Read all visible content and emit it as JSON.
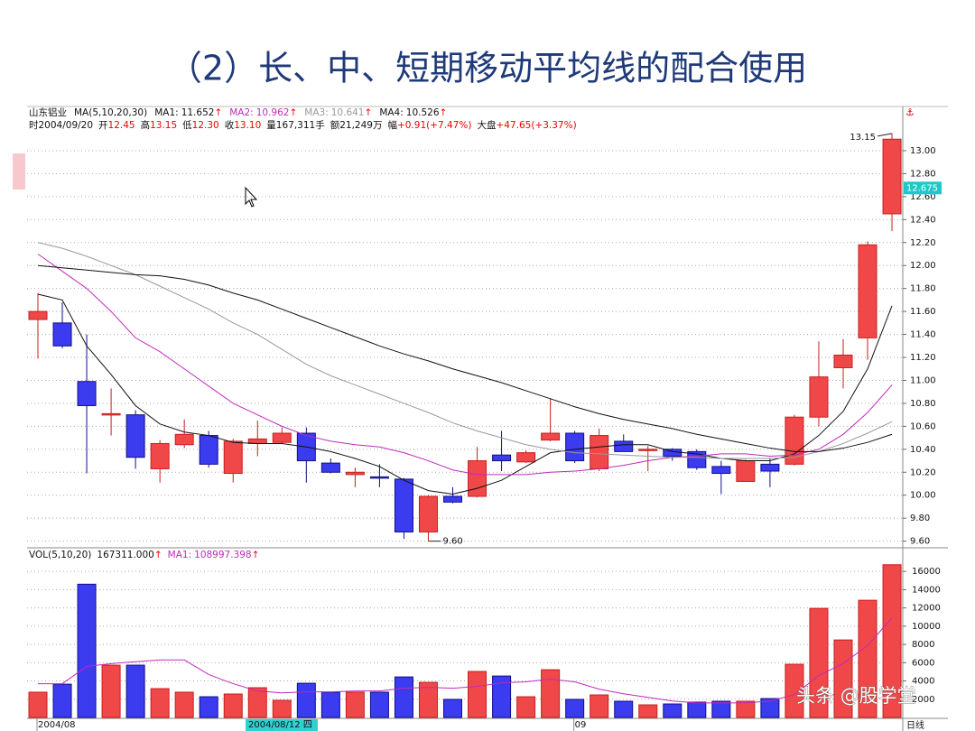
{
  "header": {
    "title": "（2）长、中、短期移动平均线的配合使用",
    "watermark": "头条 @股学堂"
  },
  "chart_data": [
    {
      "type": "candlestick",
      "stock_name": "山东铝业",
      "ma_label": "MA(5,10,20,30)",
      "up_arrow": "↑",
      "info": [
        {
          "label": "时2004/09/20"
        },
        {
          "label": "开",
          "value": "12.45"
        },
        {
          "label": "高",
          "value": "13.15"
        },
        {
          "label": "低",
          "value": "12.30"
        },
        {
          "label": "收",
          "value": "13.10"
        },
        {
          "label": "量167,311手"
        },
        {
          "label": "额21,249万"
        },
        {
          "label": "幅",
          "value": "+0.91(+7.47%)"
        },
        {
          "label": "大盘",
          "value": "+47.65(+3.37%)"
        }
      ],
      "categories": [
        "2004/08",
        null,
        null,
        null,
        null,
        null,
        null,
        null,
        null,
        null,
        null,
        null,
        null,
        null,
        null,
        null,
        null,
        null,
        null,
        null,
        null,
        null,
        "09",
        null,
        null,
        null,
        null,
        null,
        null,
        null,
        null,
        null,
        null,
        null,
        null,
        null
      ],
      "cursor_label": "2004/08/12 四",
      "period_label": "日线",
      "open": [
        11.53,
        11.5,
        10.99,
        10.7,
        10.7,
        10.23,
        10.44,
        10.52,
        10.19,
        10.45,
        10.46,
        10.54,
        10.28,
        10.18,
        10.16,
        10.14,
        9.68,
        9.99,
        9.99,
        10.35,
        10.29,
        10.48,
        10.54,
        10.23,
        10.47,
        10.39,
        10.4,
        10.38,
        10.25,
        10.12,
        10.27,
        10.27,
        10.68,
        11.11,
        11.37,
        12.45
      ],
      "high": [
        11.76,
        11.68,
        11.4,
        10.93,
        10.74,
        10.48,
        10.66,
        10.56,
        10.49,
        10.65,
        10.59,
        10.59,
        10.32,
        10.24,
        10.27,
        10.15,
        10.0,
        10.07,
        10.42,
        10.56,
        10.39,
        10.84,
        10.56,
        10.58,
        10.53,
        10.43,
        10.41,
        10.4,
        10.3,
        10.31,
        10.32,
        10.7,
        11.34,
        11.36,
        12.21,
        13.15
      ],
      "low": [
        11.19,
        11.28,
        10.19,
        10.52,
        10.23,
        10.11,
        10.41,
        10.24,
        10.11,
        10.34,
        10.45,
        10.11,
        10.19,
        10.07,
        10.07,
        9.62,
        9.6,
        9.93,
        9.98,
        10.21,
        10.28,
        10.47,
        10.28,
        10.21,
        10.38,
        10.21,
        10.3,
        10.22,
        10.01,
        10.12,
        10.07,
        10.26,
        10.6,
        10.93,
        11.18,
        12.3
      ],
      "close": [
        11.6,
        11.3,
        10.78,
        10.71,
        10.33,
        10.45,
        10.53,
        10.27,
        10.47,
        10.49,
        10.54,
        10.3,
        10.2,
        10.2,
        10.15,
        9.68,
        9.99,
        9.94,
        10.3,
        10.3,
        10.37,
        10.54,
        10.3,
        10.52,
        10.38,
        10.4,
        10.34,
        10.24,
        10.19,
        10.3,
        10.21,
        10.68,
        11.03,
        11.22,
        12.18,
        13.1
      ],
      "up_color": "#f04848",
      "up_edge": "#c81e1e",
      "down_color": "#3b3bef",
      "down_edge": "#10108a",
      "series": [
        {
          "name": "MA1:",
          "current": 11.652,
          "color": "#111111",
          "values": [
            11.75,
            11.7,
            11.3,
            11.05,
            10.78,
            10.62,
            10.55,
            10.52,
            10.46,
            10.45,
            10.45,
            10.42,
            10.38,
            10.32,
            10.25,
            10.13,
            10.04,
            10.01,
            10.06,
            10.13,
            10.25,
            10.37,
            10.4,
            10.42,
            10.44,
            10.44,
            10.38,
            10.36,
            10.32,
            10.3,
            10.3,
            10.36,
            10.52,
            10.73,
            11.1,
            11.65
          ]
        },
        {
          "name": "MA2:",
          "current": 10.962,
          "color": "#c02bb8",
          "values": [
            12.1,
            11.95,
            11.8,
            11.6,
            11.37,
            11.25,
            11.1,
            10.95,
            10.8,
            10.7,
            10.6,
            10.52,
            10.47,
            10.44,
            10.42,
            10.37,
            10.3,
            10.22,
            10.18,
            10.18,
            10.18,
            10.2,
            10.21,
            10.23,
            10.26,
            10.3,
            10.33,
            10.34,
            10.36,
            10.36,
            10.34,
            10.35,
            10.4,
            10.53,
            10.72,
            10.96
          ]
        },
        {
          "name": "MA3:",
          "current": 10.641,
          "color": "#999999",
          "values": [
            12.2,
            12.15,
            12.08,
            12.0,
            11.92,
            11.82,
            11.72,
            11.62,
            11.5,
            11.4,
            11.27,
            11.14,
            11.04,
            10.96,
            10.88,
            10.8,
            10.72,
            10.63,
            10.56,
            10.5,
            10.44,
            10.4,
            10.37,
            10.36,
            10.35,
            10.34,
            10.33,
            10.33,
            10.32,
            10.32,
            10.32,
            10.33,
            10.38,
            10.45,
            10.54,
            10.64
          ]
        },
        {
          "name": "MA4:",
          "current": 10.526,
          "color": "#111111",
          "values": [
            12.0,
            11.98,
            11.96,
            11.94,
            11.92,
            11.91,
            11.88,
            11.83,
            11.76,
            11.7,
            11.62,
            11.54,
            11.46,
            11.38,
            11.3,
            11.23,
            11.17,
            11.1,
            11.04,
            10.98,
            10.91,
            10.84,
            10.77,
            10.71,
            10.66,
            10.62,
            10.58,
            10.53,
            10.49,
            10.45,
            10.41,
            10.38,
            10.38,
            10.41,
            10.46,
            10.53
          ]
        }
      ],
      "max_label": "13.15",
      "min_label": "9.60",
      "last_price": 12.675,
      "ylim": [
        9.55,
        13.2
      ],
      "yticks": [
        {
          "value": 9.6,
          "label": "9.60"
        },
        {
          "value": 9.8,
          "label": "9.80"
        },
        {
          "value": 10,
          "label": "10.00"
        },
        {
          "value": 10.2,
          "label": "10.20"
        },
        {
          "value": 10.4,
          "label": "10.40"
        },
        {
          "value": 10.6,
          "label": "10.60"
        },
        {
          "value": 10.8,
          "label": "10.80"
        },
        {
          "value": 11,
          "label": "11.00"
        },
        {
          "value": 11.2,
          "label": "11.20"
        },
        {
          "value": 11.4,
          "label": "11.40"
        },
        {
          "value": 11.6,
          "label": "11.60"
        },
        {
          "value": 11.8,
          "label": "11.80"
        },
        {
          "value": 12,
          "label": "12.00"
        },
        {
          "value": 12.2,
          "label": "12.20"
        },
        {
          "value": 12.4,
          "label": "12.40"
        },
        {
          "value": 12.6,
          "label": "12.60"
        },
        {
          "value": 12.8,
          "label": "12.80"
        },
        {
          "value": 13,
          "label": "13.00"
        }
      ],
      "grid": true
    },
    {
      "type": "bar",
      "vol_label": "VOL(5,10,20)",
      "vol_current": "167311.000",
      "ma_name": "MA1:",
      "ma_current": "108997.398",
      "ma_color": "#c02bb8",
      "values": [
        2770,
        3650,
        14600,
        5730,
        5730,
        3160,
        2770,
        2270,
        2570,
        3260,
        1880,
        3750,
        2770,
        2770,
        2770,
        4440,
        3850,
        1980,
        5040,
        4540,
        2270,
        5230,
        1980,
        2470,
        1780,
        1380,
        1480,
        1680,
        1780,
        1780,
        2070,
        5830,
        11950,
        8490,
        12840,
        16731.1
      ],
      "ma_values": [
        3700,
        3700,
        5600,
        5900,
        6100,
        6300,
        6300,
        4700,
        3700,
        2900,
        2700,
        2800,
        2800,
        2900,
        2900,
        3200,
        3300,
        3200,
        3400,
        3800,
        3900,
        4200,
        3900,
        3100,
        2600,
        2200,
        1800,
        1600,
        1600,
        1600,
        1800,
        2500,
        4600,
        5900,
        7900,
        10900
      ],
      "ylim": [
        0,
        17500
      ],
      "yticks": [
        2000,
        4000,
        6000,
        8000,
        10000,
        12000,
        14000,
        16000
      ],
      "grid": true
    }
  ]
}
